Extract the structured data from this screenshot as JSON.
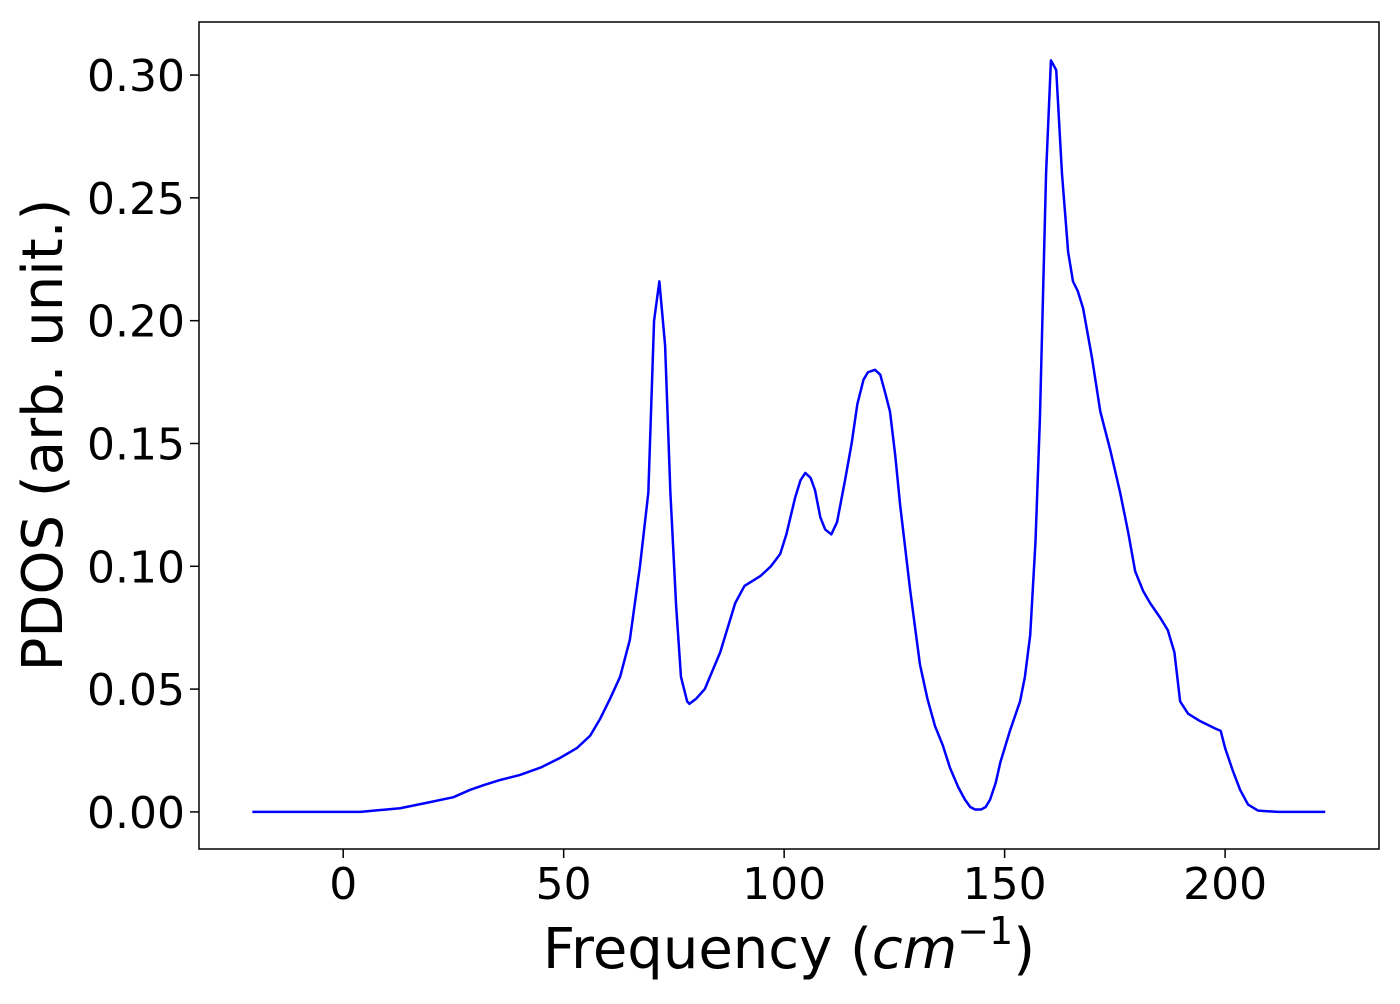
{
  "chart_data": {
    "type": "line",
    "xlabel": [
      "Frequency (",
      "cm",
      "−1",
      ")"
    ],
    "ylabel": "PDOS (arb. unit.)",
    "x": [
      -20.6,
      3.9,
      12.9,
      19.7,
      25,
      28.8,
      32,
      35.6,
      40,
      44.7,
      49.2,
      53,
      56,
      58.3,
      60.5,
      62.8,
      65,
      67.3,
      69.2,
      70.5,
      71.7,
      73,
      74.2,
      75.5,
      76.6,
      78,
      78.5,
      80,
      82,
      85.5,
      88.9,
      91,
      94.6,
      97,
      99.1,
      100.5,
      102.5,
      103.7,
      104.8,
      106,
      107,
      108.2,
      109.3,
      110.7,
      112,
      113.8,
      115.3,
      116.6,
      118,
      119,
      120.6,
      121.8,
      123,
      124,
      125.2,
      126.3,
      128.6,
      130.8,
      132.5,
      134.2,
      136,
      137.6,
      139.5,
      141,
      142.2,
      143.3,
      144.7,
      145.7,
      146.7,
      148,
      149,
      151.2,
      153.5,
      154.6,
      155.8,
      157,
      158,
      159.4,
      160.5,
      161.7,
      163,
      164.4,
      165.5,
      166.6,
      167.8,
      169.8,
      171.7,
      174,
      176.2,
      178,
      179.6,
      181.4,
      183,
      185.3,
      187,
      188.5,
      189.8,
      191.6,
      194.3,
      197.7,
      199,
      200,
      201.7,
      203.4,
      205.2,
      207.5,
      212,
      222.7
    ],
    "series": [
      {
        "color": "#0000ff",
        "values": [
          0,
          0,
          0.0015,
          0.004,
          0.006,
          0.009,
          0.011,
          0.013,
          0.015,
          0.018,
          0.022,
          0.026,
          0.031,
          0.038,
          0.046,
          0.055,
          0.07,
          0.1,
          0.13,
          0.2,
          0.216,
          0.19,
          0.13,
          0.084,
          0.055,
          0.045,
          0.044,
          0.046,
          0.05,
          0.065,
          0.085,
          0.092,
          0.096,
          0.1,
          0.105,
          0.113,
          0.128,
          0.135,
          0.138,
          0.136,
          0.131,
          0.12,
          0.115,
          0.113,
          0.118,
          0.135,
          0.15,
          0.166,
          0.176,
          0.179,
          0.18,
          0.178,
          0.17,
          0.163,
          0.145,
          0.125,
          0.09,
          0.06,
          0.046,
          0.035,
          0.027,
          0.018,
          0.01,
          0.005,
          0.002,
          0.001,
          0.001,
          0.002,
          0.005,
          0.012,
          0.02,
          0.033,
          0.045,
          0.055,
          0.072,
          0.11,
          0.16,
          0.26,
          0.306,
          0.302,
          0.26,
          0.228,
          0.216,
          0.212,
          0.205,
          0.185,
          0.163,
          0.147,
          0.13,
          0.114,
          0.098,
          0.09,
          0.085,
          0.079,
          0.074,
          0.065,
          0.045,
          0.04,
          0.037,
          0.034,
          0.033,
          0.026,
          0.017,
          0.009,
          0.003,
          0.0005,
          0,
          0
        ]
      }
    ],
    "xlim": [
      -32.7,
      234.9
    ],
    "ylim": [
      -0.0151,
      0.3216
    ],
    "xticks": [
      0,
      50,
      100,
      150,
      200
    ],
    "yticks": [
      {
        "value": 0,
        "label": "0.00"
      },
      {
        "value": 0.05,
        "label": "0.05"
      },
      {
        "value": 0.1,
        "label": "0.10"
      },
      {
        "value": 0.15,
        "label": "0.15"
      },
      {
        "value": 0.2,
        "label": "0.20"
      },
      {
        "value": 0.25,
        "label": "0.25"
      },
      {
        "value": 0.3,
        "label": "0.30"
      }
    ]
  }
}
